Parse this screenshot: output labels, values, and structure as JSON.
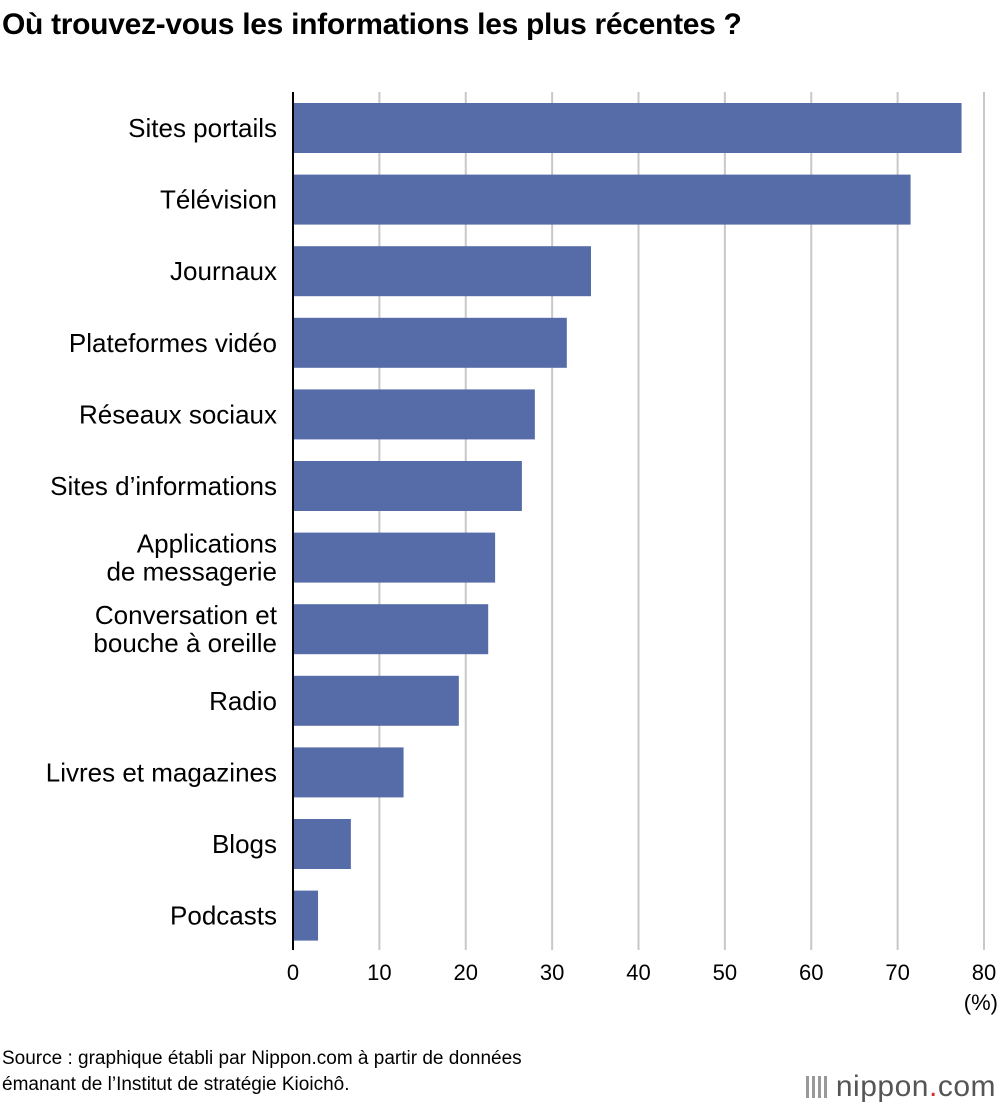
{
  "title": "Où trouvez-vous les informations les plus récentes ?",
  "chart_data": {
    "type": "bar",
    "orientation": "horizontal",
    "categories": [
      "Sites portails",
      "Télévision",
      "Journaux",
      "Plateformes vidéo",
      "Réseaux sociaux",
      "Sites d’informations",
      "Applications\nde messagerie",
      "Conversation et\nbouche à oreille",
      "Radio",
      "Livres et magazines",
      "Blogs",
      "Podcasts"
    ],
    "values": [
      77.4,
      71.5,
      34.5,
      31.7,
      28.0,
      26.5,
      23.4,
      22.6,
      19.2,
      12.8,
      6.7,
      2.9
    ],
    "xlim": [
      0,
      80
    ],
    "xticks": [
      "0",
      "10",
      "20",
      "30",
      "40",
      "50",
      "60",
      "70",
      "80"
    ],
    "xlabel": "(%)",
    "grid": true,
    "bar_color": "#566ca8"
  },
  "source": [
    "Source : graphique établi par Nippon.com à partir de données",
    "émanant de l’Institut de stratégie Kioichô."
  ],
  "logo": {
    "name": "nippon",
    "dot": ".",
    "suffix": "com"
  }
}
